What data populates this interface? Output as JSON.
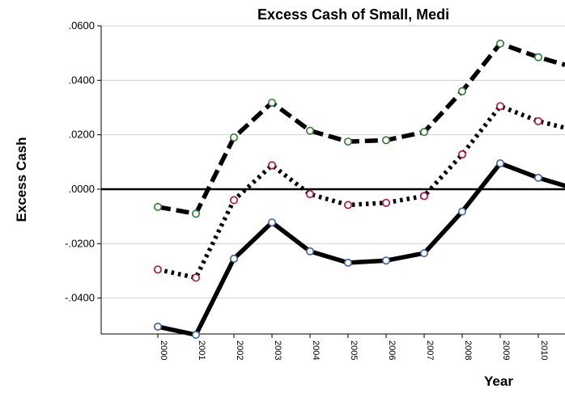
{
  "chart_data": {
    "type": "line",
    "title": "Excess Cash of Small, Medi",
    "xlabel": "Year",
    "ylabel": "Excess Cash",
    "x": [
      "2000",
      "2001",
      "2002",
      "2003",
      "2004",
      "2005",
      "2006",
      "2007",
      "2008",
      "2009",
      "2010"
    ],
    "ylim": [
      -0.054,
      0.06
    ],
    "yticks": [
      0.06,
      0.04,
      0.02,
      0.0,
      -0.02,
      -0.04
    ],
    "ytick_labels": [
      ".0600",
      ".0400",
      ".0200",
      ".0000",
      "-.0200",
      "-.0400"
    ],
    "grid": true,
    "reference_line": 0.0,
    "series": [
      {
        "style": "dashed",
        "marker_color": "#2e7d32",
        "values": [
          -0.0065,
          -0.009,
          0.019,
          0.0318,
          0.0215,
          0.0175,
          0.018,
          0.021,
          0.036,
          0.0535,
          0.0485
        ],
        "next_value": 0.0445
      },
      {
        "style": "dotted",
        "marker_color": "#b0103a",
        "values": [
          -0.0295,
          -0.0325,
          -0.004,
          0.0088,
          -0.0018,
          -0.0058,
          -0.005,
          -0.0025,
          0.0128,
          0.0305,
          0.025
        ],
        "next_value": 0.0215
      },
      {
        "style": "solid",
        "marker_color": "#3b5fa8",
        "values": [
          -0.0505,
          -0.0535,
          -0.0255,
          -0.0122,
          -0.0228,
          -0.027,
          -0.0262,
          -0.0235,
          -0.0082,
          0.0095,
          0.0042
        ],
        "next_value": 0.0
      }
    ]
  }
}
